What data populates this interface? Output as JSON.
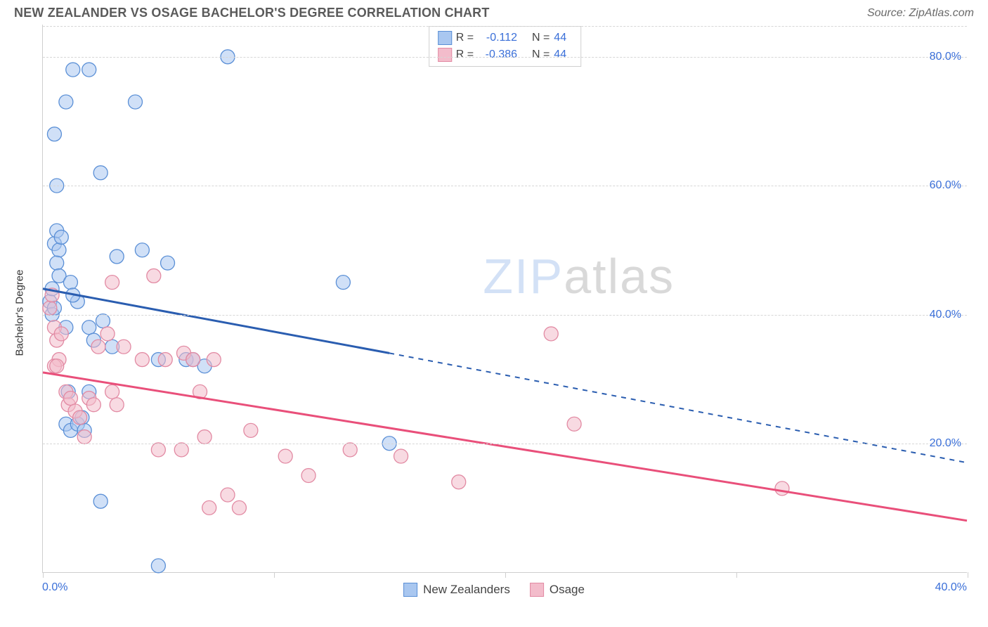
{
  "title": "NEW ZEALANDER VS OSAGE BACHELOR'S DEGREE CORRELATION CHART",
  "source": "Source: ZipAtlas.com",
  "ylabel": "Bachelor's Degree",
  "watermark": {
    "z": "ZIP",
    "rest": "atlas"
  },
  "chart": {
    "type": "scatter",
    "xlim": [
      0,
      40
    ],
    "ylim": [
      0,
      85
    ],
    "x_ticks": [
      0,
      10,
      20,
      30,
      40
    ],
    "x_tick_labels": [
      "0.0%",
      "",
      "",
      "",
      "40.0%"
    ],
    "y_ticks": [
      20,
      40,
      60,
      80
    ],
    "y_tick_labels": [
      "20.0%",
      "40.0%",
      "60.0%",
      "80.0%"
    ],
    "background_color": "#ffffff",
    "grid_color": "#d6d6d6",
    "axis_color": "#cfcfcf",
    "tick_label_color": "#3a6fd8",
    "tick_label_fontsize": 16,
    "marker_radius": 10,
    "marker_opacity": 0.55,
    "line_width": 3
  },
  "series": [
    {
      "name": "New Zealanders",
      "color_fill": "#a9c7f0",
      "color_stroke": "#5a8fd6",
      "line_color": "#2a5db0",
      "R": "-0.112",
      "N": "44",
      "trend": {
        "x1": 0,
        "y1": 44,
        "x2_solid": 15,
        "y2_solid": 34,
        "x2_dash": 40,
        "y2_dash": 17
      },
      "points": [
        [
          0.3,
          42
        ],
        [
          0.4,
          44
        ],
        [
          0.5,
          51
        ],
        [
          0.6,
          53
        ],
        [
          0.7,
          50
        ],
        [
          0.8,
          52
        ],
        [
          0.4,
          40
        ],
        [
          0.5,
          41
        ],
        [
          0.6,
          48
        ],
        [
          0.7,
          46
        ],
        [
          0.5,
          68
        ],
        [
          0.6,
          60
        ],
        [
          1.0,
          73
        ],
        [
          1.3,
          78
        ],
        [
          2.0,
          78
        ],
        [
          2.5,
          62
        ],
        [
          4.0,
          73
        ],
        [
          8.0,
          80
        ],
        [
          1.2,
          45
        ],
        [
          1.5,
          42
        ],
        [
          2.0,
          38
        ],
        [
          2.2,
          36
        ],
        [
          2.6,
          39
        ],
        [
          3.0,
          35
        ],
        [
          3.2,
          49
        ],
        [
          4.3,
          50
        ],
        [
          5.0,
          33
        ],
        [
          5.4,
          48
        ],
        [
          6.2,
          33
        ],
        [
          6.5,
          33
        ],
        [
          7.0,
          32
        ],
        [
          1.0,
          23
        ],
        [
          1.2,
          22
        ],
        [
          1.5,
          23
        ],
        [
          1.7,
          24
        ],
        [
          1.8,
          22
        ],
        [
          1.0,
          38
        ],
        [
          1.1,
          28
        ],
        [
          2.0,
          28
        ],
        [
          2.5,
          11
        ],
        [
          5.0,
          1
        ],
        [
          13.0,
          45
        ],
        [
          15.0,
          20
        ],
        [
          1.3,
          43
        ]
      ]
    },
    {
      "name": "Osage",
      "color_fill": "#f3bccb",
      "color_stroke": "#e28aa3",
      "line_color": "#e94f7a",
      "R": "-0.386",
      "N": "44",
      "trend": {
        "x1": 0,
        "y1": 31,
        "x2_solid": 40,
        "y2_solid": 8,
        "x2_dash": 40,
        "y2_dash": 8
      },
      "points": [
        [
          0.3,
          41
        ],
        [
          0.4,
          43
        ],
        [
          0.5,
          38
        ],
        [
          0.6,
          36
        ],
        [
          0.7,
          33
        ],
        [
          0.5,
          32
        ],
        [
          0.6,
          32
        ],
        [
          0.8,
          37
        ],
        [
          1.0,
          28
        ],
        [
          1.1,
          26
        ],
        [
          1.2,
          27
        ],
        [
          1.4,
          25
        ],
        [
          1.6,
          24
        ],
        [
          1.8,
          21
        ],
        [
          2.0,
          27
        ],
        [
          2.2,
          26
        ],
        [
          2.4,
          35
        ],
        [
          2.8,
          37
        ],
        [
          3.0,
          28
        ],
        [
          3.0,
          45
        ],
        [
          3.2,
          26
        ],
        [
          3.5,
          35
        ],
        [
          4.3,
          33
        ],
        [
          4.8,
          46
        ],
        [
          5.0,
          19
        ],
        [
          5.3,
          33
        ],
        [
          6.0,
          19
        ],
        [
          6.1,
          34
        ],
        [
          6.5,
          33
        ],
        [
          6.8,
          28
        ],
        [
          7.0,
          21
        ],
        [
          7.2,
          10
        ],
        [
          7.4,
          33
        ],
        [
          8.0,
          12
        ],
        [
          8.5,
          10
        ],
        [
          9.0,
          22
        ],
        [
          10.5,
          18
        ],
        [
          11.5,
          15
        ],
        [
          13.3,
          19
        ],
        [
          15.5,
          18
        ],
        [
          18.0,
          14
        ],
        [
          22.0,
          37
        ],
        [
          23.0,
          23
        ],
        [
          32.0,
          13
        ]
      ]
    }
  ],
  "stats_labels": {
    "r": "R =",
    "n": "N ="
  },
  "legend_labels": {
    "series1": "New Zealanders",
    "series2": "Osage"
  }
}
